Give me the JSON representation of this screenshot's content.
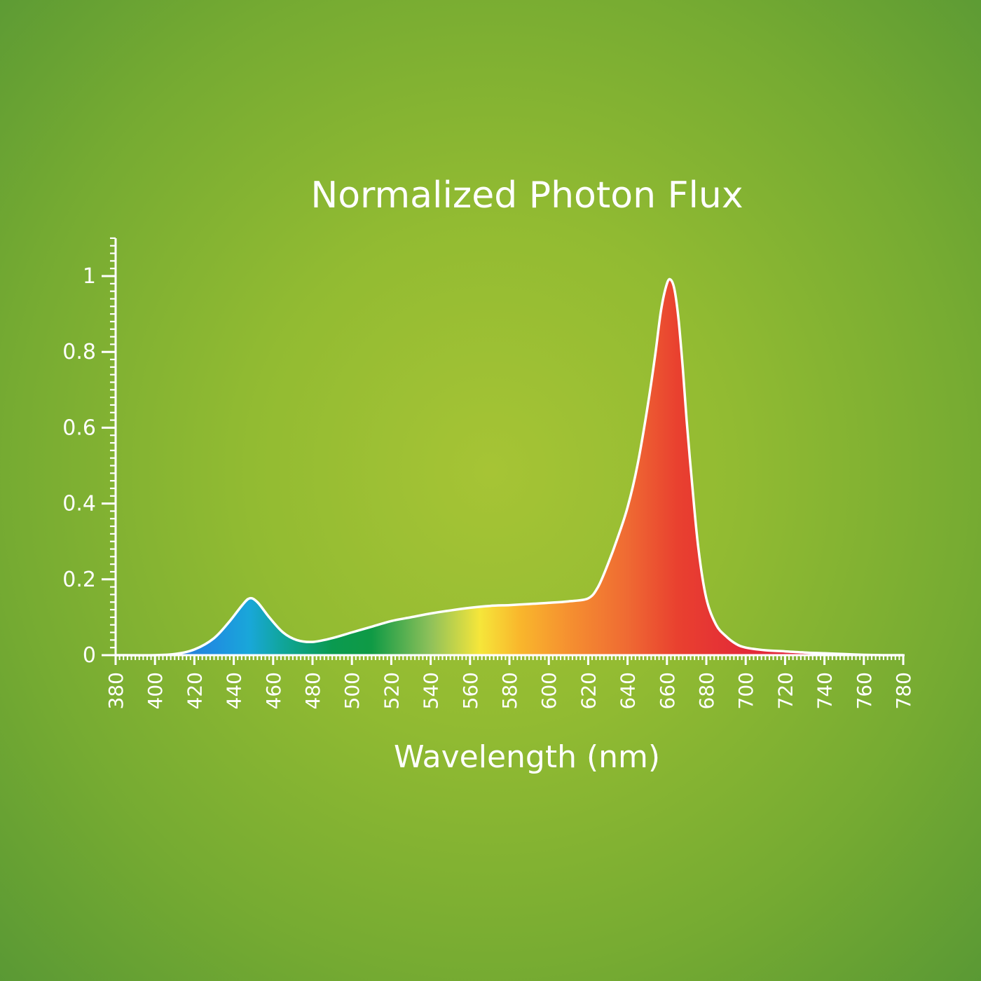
{
  "chart_data": {
    "type": "area",
    "title": "Normalized Photon Flux",
    "xlabel": "Wavelength (nm)",
    "ylabel": "",
    "xlim": [
      380,
      780
    ],
    "ylim": [
      0,
      1.1
    ],
    "x_ticks": [
      "380",
      "400",
      "420",
      "440",
      "460",
      "480",
      "500",
      "520",
      "540",
      "560",
      "580",
      "600",
      "620",
      "640",
      "660",
      "680",
      "700",
      "720",
      "740",
      "760",
      "780"
    ],
    "y_ticks": [
      "0",
      "0.2",
      "0.4",
      "0.6",
      "0.8",
      "1"
    ],
    "grid": false,
    "x": [
      380,
      400,
      410,
      420,
      430,
      438,
      444,
      448,
      452,
      458,
      465,
      472,
      480,
      490,
      500,
      510,
      520,
      530,
      540,
      550,
      560,
      570,
      580,
      590,
      600,
      610,
      620,
      625,
      630,
      635,
      640,
      645,
      650,
      654,
      657,
      660,
      662,
      664,
      666,
      668,
      670,
      673,
      676,
      680,
      685,
      690,
      695,
      700,
      710,
      720,
      730,
      740,
      750,
      760,
      770,
      780
    ],
    "y": [
      0,
      0,
      0.003,
      0.015,
      0.045,
      0.09,
      0.13,
      0.15,
      0.14,
      0.1,
      0.06,
      0.04,
      0.035,
      0.045,
      0.06,
      0.075,
      0.09,
      0.1,
      0.11,
      0.118,
      0.125,
      0.13,
      0.132,
      0.135,
      0.138,
      0.142,
      0.15,
      0.18,
      0.24,
      0.31,
      0.39,
      0.5,
      0.65,
      0.79,
      0.91,
      0.98,
      0.99,
      0.96,
      0.88,
      0.76,
      0.62,
      0.44,
      0.28,
      0.15,
      0.08,
      0.05,
      0.03,
      0.02,
      0.013,
      0.01,
      0.007,
      0.005,
      0.003,
      0.001,
      0,
      0
    ]
  }
}
